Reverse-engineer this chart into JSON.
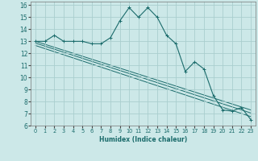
{
  "xlabel": "Humidex (Indice chaleur)",
  "ylabel": "",
  "bg_color": "#cce8e8",
  "grid_color": "#aacece",
  "line_color": "#1a6b6b",
  "xlim": [
    -0.5,
    23.5
  ],
  "ylim": [
    6,
    16.3
  ],
  "xticks": [
    0,
    1,
    2,
    3,
    4,
    5,
    6,
    7,
    8,
    9,
    10,
    11,
    12,
    13,
    14,
    15,
    16,
    17,
    18,
    19,
    20,
    21,
    22,
    23
  ],
  "yticks": [
    6,
    7,
    8,
    9,
    10,
    11,
    12,
    13,
    14,
    15,
    16
  ],
  "main_x": [
    0,
    1,
    2,
    3,
    4,
    5,
    6,
    7,
    8,
    9,
    10,
    11,
    12,
    13,
    14,
    15,
    16,
    17,
    18,
    19,
    20,
    21,
    22,
    23
  ],
  "main_y": [
    13,
    13,
    13.5,
    13,
    13,
    13,
    12.8,
    12.8,
    13.3,
    14.7,
    15.8,
    15,
    15.8,
    15,
    13.5,
    12.8,
    10.5,
    11.3,
    10.7,
    8.5,
    7.3,
    7.2,
    7.5,
    6.5
  ],
  "line1_x": [
    0,
    23
  ],
  "line1_y": [
    13.0,
    7.3
  ],
  "line2_x": [
    0,
    23
  ],
  "line2_y": [
    12.85,
    7.05
  ],
  "line3_x": [
    0,
    23
  ],
  "line3_y": [
    12.65,
    6.75
  ]
}
